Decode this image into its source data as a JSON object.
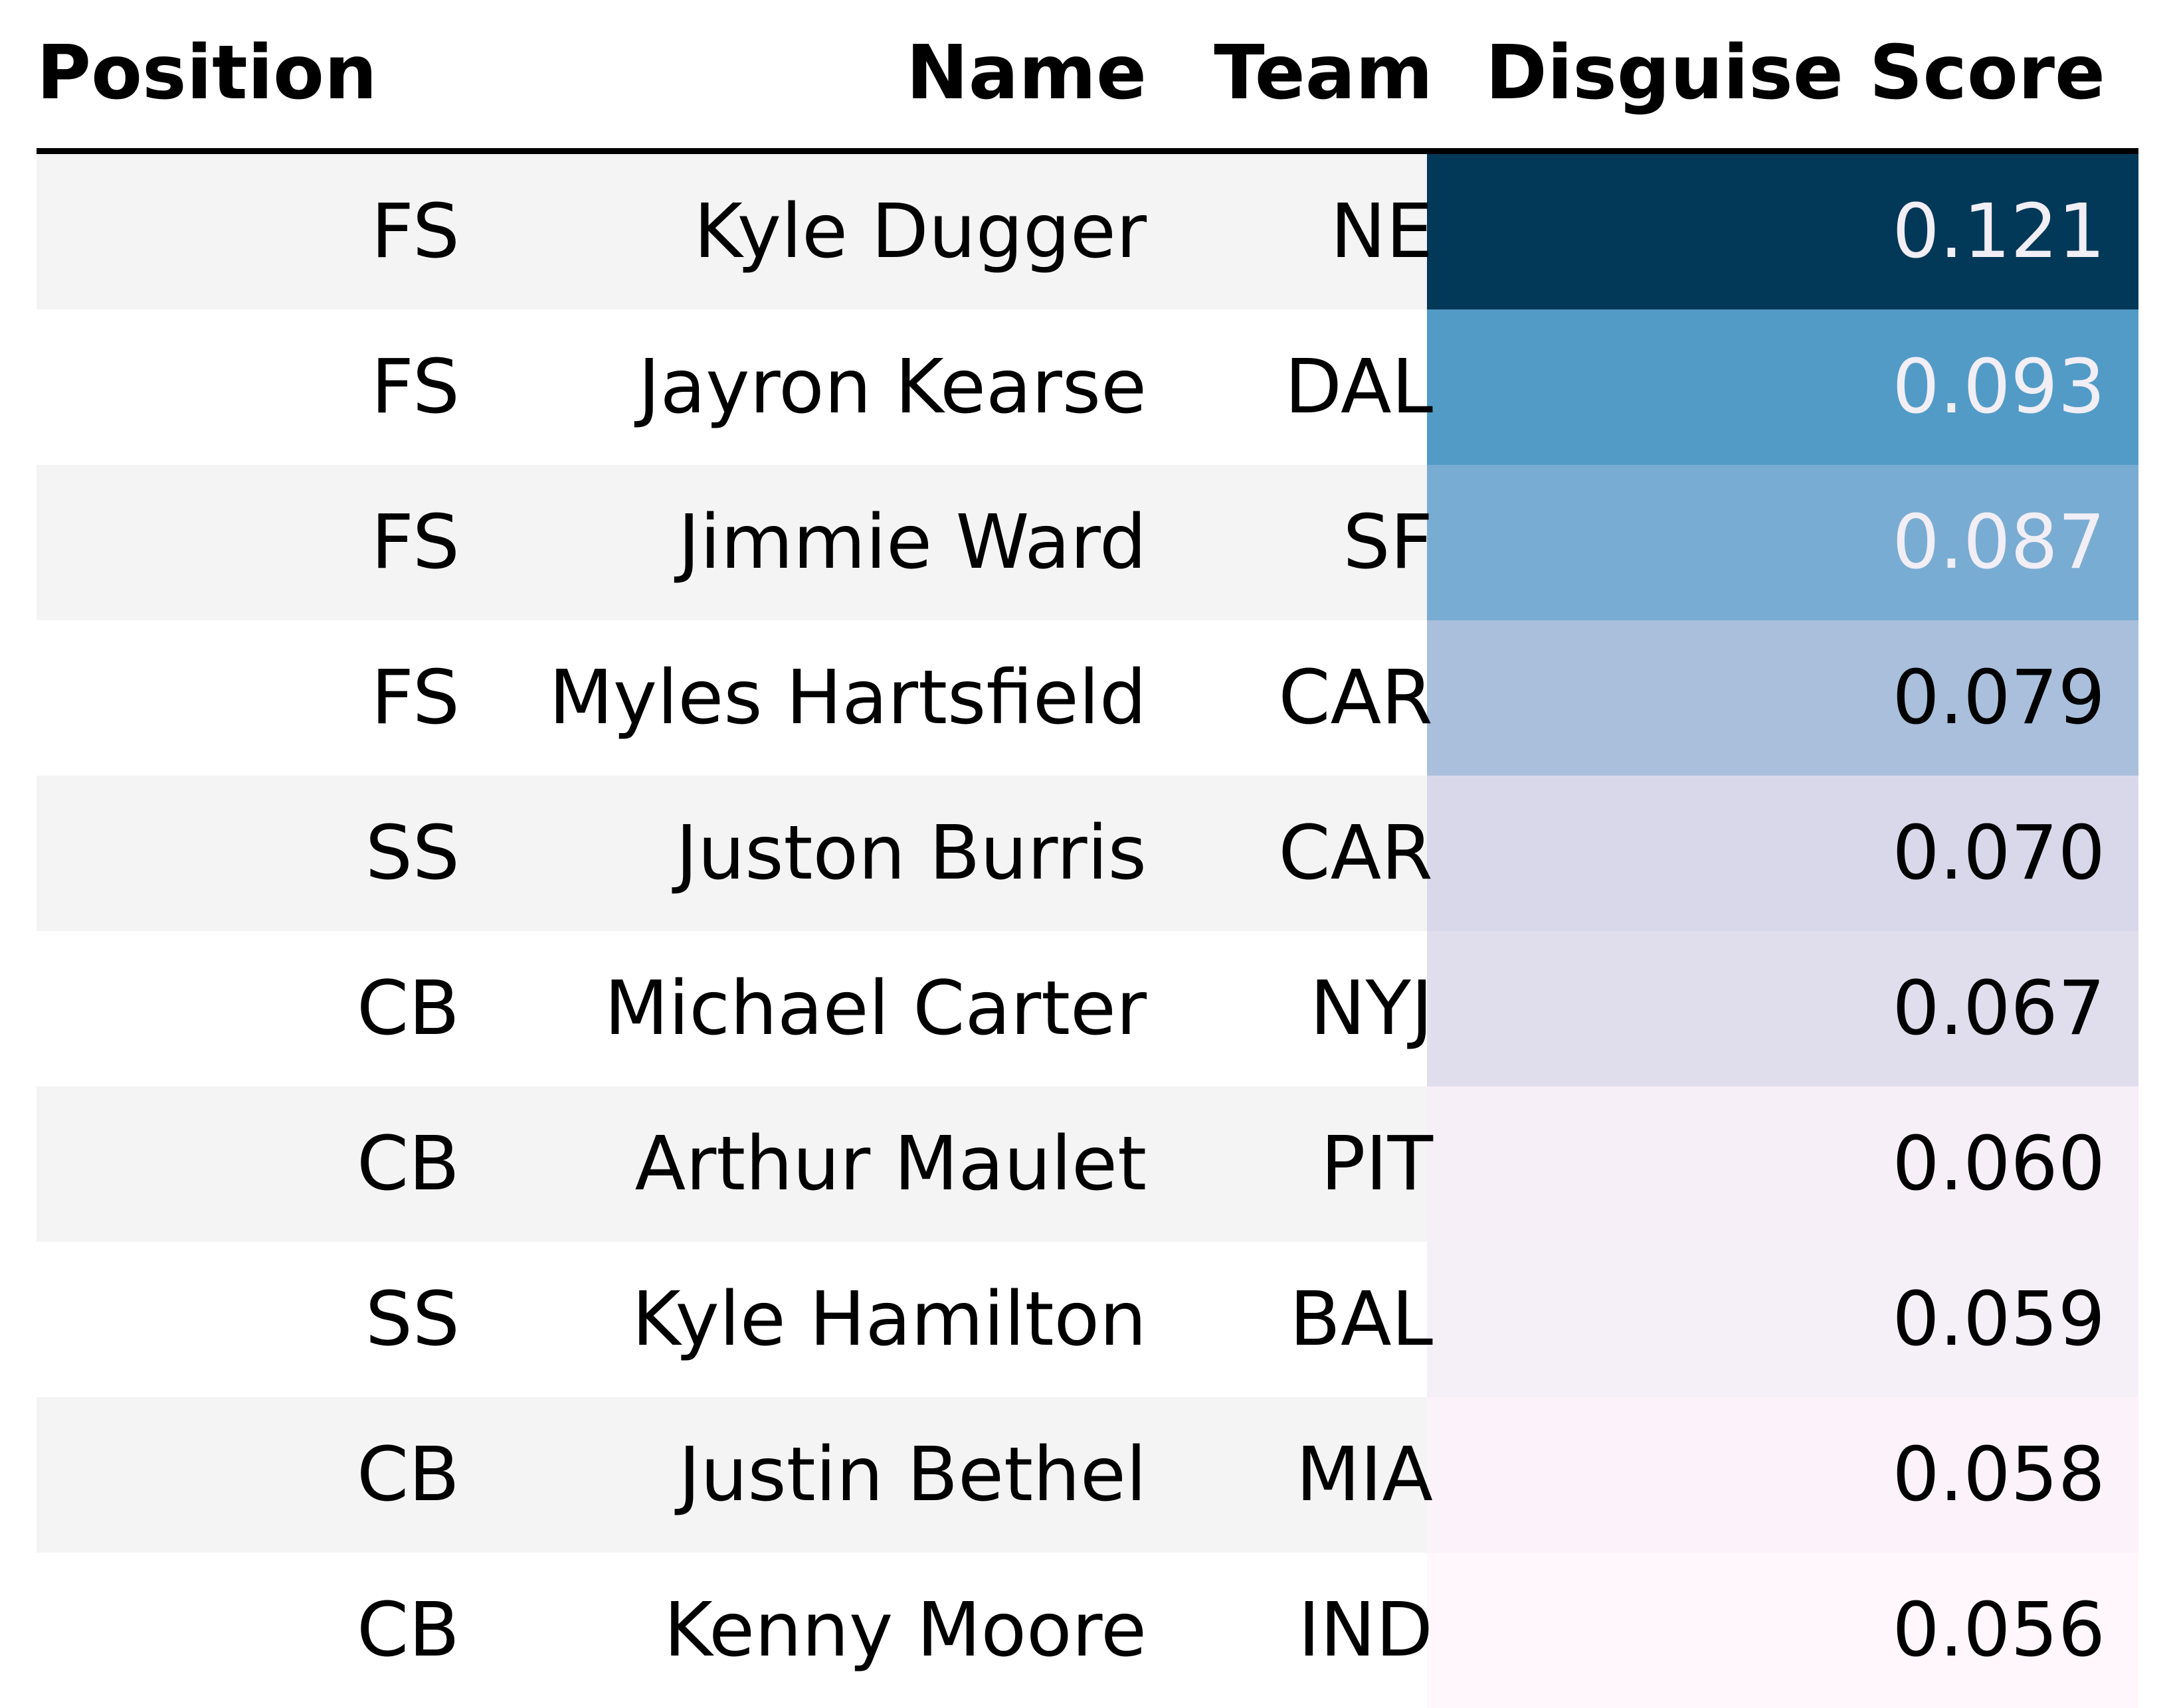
{
  "chart_data": {
    "type": "table",
    "columns": [
      "Position",
      "Name",
      "Team",
      "Disguise Score"
    ],
    "rows": [
      {
        "position": "FS",
        "name": "Kyle Dugger",
        "team": "NE",
        "score": "0.121",
        "bg": "#023858",
        "fg": "#f1eef6"
      },
      {
        "position": "FS",
        "name": "Jayron Kearse",
        "team": "DAL",
        "score": "0.093",
        "bg": "#529bc7",
        "fg": "#f1eef6"
      },
      {
        "position": "FS",
        "name": "Jimmie Ward",
        "team": "SF",
        "score": "0.087",
        "bg": "#79acd2",
        "fg": "#f1eef6"
      },
      {
        "position": "FS",
        "name": "Myles Hartsfield",
        "team": "CAR",
        "score": "0.079",
        "bg": "#a9bfdc",
        "fg": "#000000"
      },
      {
        "position": "SS",
        "name": "Juston Burris",
        "team": "CAR",
        "score": "0.070",
        "bg": "#d9d8ea",
        "fg": "#000000"
      },
      {
        "position": "CB",
        "name": "Michael Carter",
        "team": "NYJ",
        "score": "0.067",
        "bg": "#e0deed",
        "fg": "#000000"
      },
      {
        "position": "CB",
        "name": "Arthur Maulet",
        "team": "PIT",
        "score": "0.060",
        "bg": "#f6eff7",
        "fg": "#000000"
      },
      {
        "position": "SS",
        "name": "Kyle Hamilton",
        "team": "BAL",
        "score": "0.059",
        "bg": "#f5f0f7",
        "fg": "#000000"
      },
      {
        "position": "CB",
        "name": "Justin Bethel",
        "team": "MIA",
        "score": "0.058",
        "bg": "#fcf2f9",
        "fg": "#000000"
      },
      {
        "position": "CB",
        "name": "Kenny Moore",
        "team": "IND",
        "score": "0.056",
        "bg": "#fff7fb",
        "fg": "#000000"
      }
    ]
  }
}
